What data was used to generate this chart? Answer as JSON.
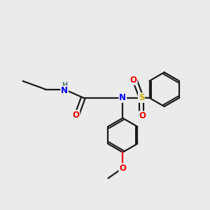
{
  "bg_color": "#ebebeb",
  "bond_color": "#1a1a1a",
  "atom_colors": {
    "N": "#0000ee",
    "O": "#ee0000",
    "S": "#ccaa00",
    "H": "#557777",
    "C": "#1a1a1a"
  },
  "figsize": [
    3.0,
    3.0
  ],
  "dpi": 100,
  "bond_lw": 1.6,
  "fontsize": 8.5
}
